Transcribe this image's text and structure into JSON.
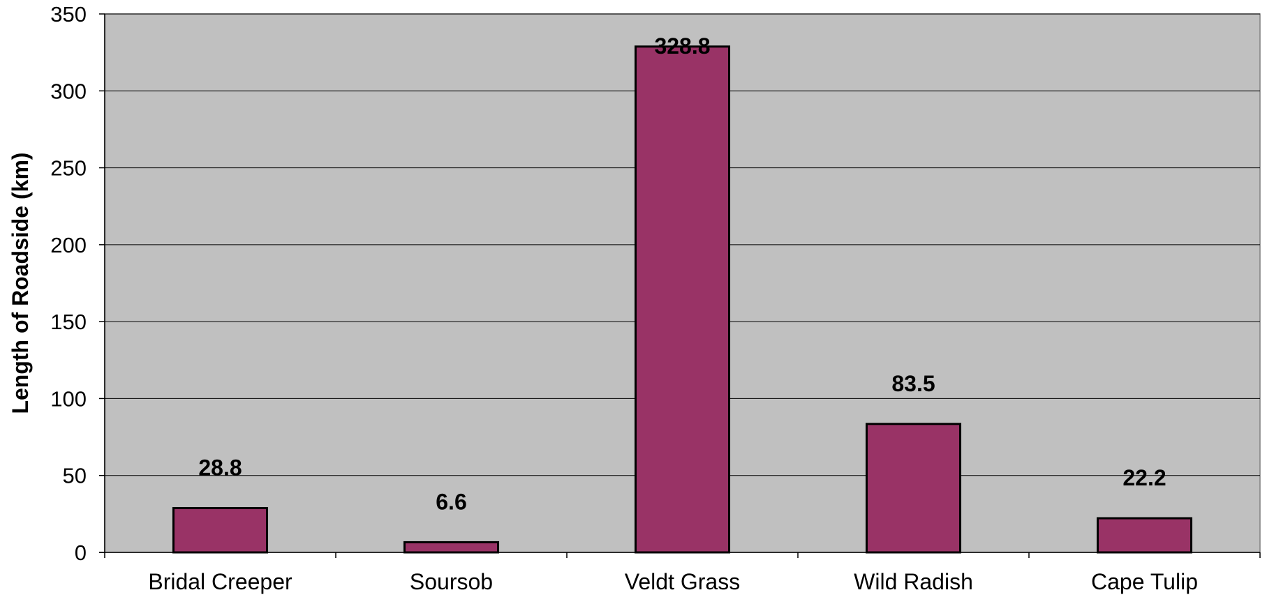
{
  "chart_data": {
    "type": "bar",
    "title": "",
    "xlabel": "",
    "ylabel": "Length of Roadside (km)",
    "categories": [
      "Bridal Creeper",
      "Soursob",
      "Veldt Grass",
      "Wild Radish",
      "Cape Tulip"
    ],
    "values": [
      28.8,
      6.6,
      328.8,
      83.5,
      22.2
    ],
    "data_labels": [
      "28.8",
      "6.6",
      "328.8",
      "83.5",
      "22.2"
    ],
    "yticks": [
      0,
      50,
      100,
      150,
      200,
      250,
      300,
      350
    ],
    "ylim": [
      0,
      350
    ],
    "grid": true,
    "legend": "none",
    "colors": {
      "bar_fill": "#993366",
      "bar_stroke": "#000000",
      "plot_background": "#c0c0c0",
      "gridline": "#000000"
    }
  }
}
